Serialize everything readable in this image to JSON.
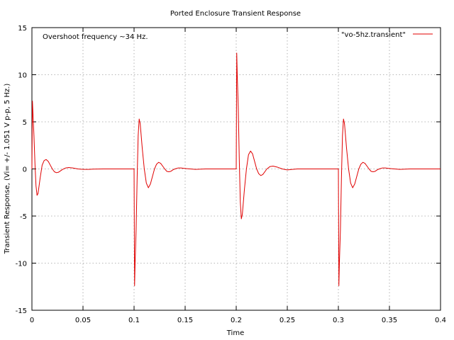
{
  "chart_data": {
    "type": "line",
    "title": "Ported Enclosure Transient Response",
    "xlabel": "Time",
    "ylabel": "Transient Response, (Vi= +/- 1.051 V p-p, 5 Hz.)",
    "annotation": "Overshoot frequency ~34 Hz.",
    "xlim": [
      0,
      0.4
    ],
    "ylim": [
      -15,
      15
    ],
    "x_ticks": [
      0,
      0.05,
      0.1,
      0.15,
      0.2,
      0.25,
      0.3,
      0.35,
      0.4
    ],
    "x_tick_labels": [
      "0",
      "0.05",
      "0.1",
      "0.15",
      "0.2",
      "0.25",
      "0.3",
      "0.35",
      "0.4"
    ],
    "y_ticks": [
      -15,
      -10,
      -5,
      0,
      5,
      10,
      15
    ],
    "y_tick_labels": [
      "-15",
      "-10",
      "-5",
      "0",
      "5",
      "10",
      "15"
    ],
    "grid": true,
    "legend_position": "top-right",
    "series": [
      {
        "name": "\"vo-5hz.transient\"",
        "color": "#e00000",
        "x": [
          0,
          0.0005,
          0.001,
          0.002,
          0.003,
          0.004,
          0.005,
          0.006,
          0.008,
          0.01,
          0.012,
          0.014,
          0.016,
          0.018,
          0.02,
          0.022,
          0.024,
          0.026,
          0.028,
          0.03,
          0.033,
          0.036,
          0.04,
          0.045,
          0.05,
          0.055,
          0.06,
          0.07,
          0.08,
          0.09,
          0.099,
          0.1,
          0.1005,
          0.101,
          0.102,
          0.103,
          0.104,
          0.105,
          0.106,
          0.107,
          0.108,
          0.11,
          0.112,
          0.114,
          0.116,
          0.118,
          0.12,
          0.122,
          0.124,
          0.126,
          0.128,
          0.13,
          0.132,
          0.134,
          0.136,
          0.138,
          0.14,
          0.143,
          0.146,
          0.15,
          0.155,
          0.16,
          0.17,
          0.18,
          0.19,
          0.199,
          0.2,
          0.2005,
          0.201,
          0.202,
          0.203,
          0.204,
          0.205,
          0.206,
          0.207,
          0.208,
          0.21,
          0.212,
          0.214,
          0.216,
          0.218,
          0.22,
          0.222,
          0.224,
          0.226,
          0.228,
          0.23,
          0.233,
          0.236,
          0.24,
          0.245,
          0.25,
          0.255,
          0.26,
          0.27,
          0.28,
          0.29,
          0.299,
          0.3,
          0.3005,
          0.301,
          0.302,
          0.303,
          0.304,
          0.305,
          0.306,
          0.307,
          0.308,
          0.31,
          0.312,
          0.314,
          0.316,
          0.318,
          0.32,
          0.322,
          0.324,
          0.326,
          0.328,
          0.33,
          0.332,
          0.334,
          0.336,
          0.338,
          0.34,
          0.343,
          0.346,
          0.35,
          0.355,
          0.36,
          0.37,
          0.38,
          0.39,
          0.4
        ],
        "y": [
          0,
          7.2,
          6.0,
          3.5,
          0.5,
          -1.8,
          -2.8,
          -2.6,
          -1.0,
          0.4,
          0.9,
          1.0,
          0.8,
          0.4,
          0.0,
          -0.3,
          -0.4,
          -0.35,
          -0.2,
          -0.05,
          0.1,
          0.15,
          0.1,
          0.0,
          -0.05,
          -0.05,
          -0.02,
          0.0,
          0.0,
          0.0,
          0.0,
          0.0,
          -12.4,
          -10.0,
          -6.5,
          -1.0,
          3.5,
          5.3,
          4.8,
          3.5,
          2.2,
          0.0,
          -1.5,
          -2.0,
          -1.6,
          -0.8,
          0.0,
          0.5,
          0.7,
          0.6,
          0.3,
          0.0,
          -0.25,
          -0.3,
          -0.25,
          -0.1,
          0.0,
          0.1,
          0.1,
          0.05,
          0.0,
          -0.05,
          0.0,
          0.0,
          0.0,
          0.0,
          0.0,
          12.3,
          10.0,
          6.5,
          1.0,
          -3.5,
          -5.3,
          -4.8,
          -3.5,
          -2.2,
          0.0,
          1.5,
          1.9,
          1.6,
          0.8,
          0.0,
          -0.5,
          -0.7,
          -0.6,
          -0.3,
          0.0,
          0.25,
          0.3,
          0.2,
          0.0,
          -0.1,
          -0.05,
          0.0,
          0.0,
          0.0,
          0.0,
          0.0,
          0.0,
          -12.4,
          -10.0,
          -6.5,
          -1.0,
          3.5,
          5.3,
          4.8,
          3.5,
          2.2,
          0.0,
          -1.5,
          -2.0,
          -1.6,
          -0.8,
          0.0,
          0.5,
          0.7,
          0.6,
          0.3,
          0.0,
          -0.25,
          -0.3,
          -0.25,
          -0.1,
          0.0,
          0.1,
          0.1,
          0.05,
          0.0,
          -0.05,
          0.0,
          0.0,
          0.0,
          0.0
        ]
      }
    ]
  }
}
